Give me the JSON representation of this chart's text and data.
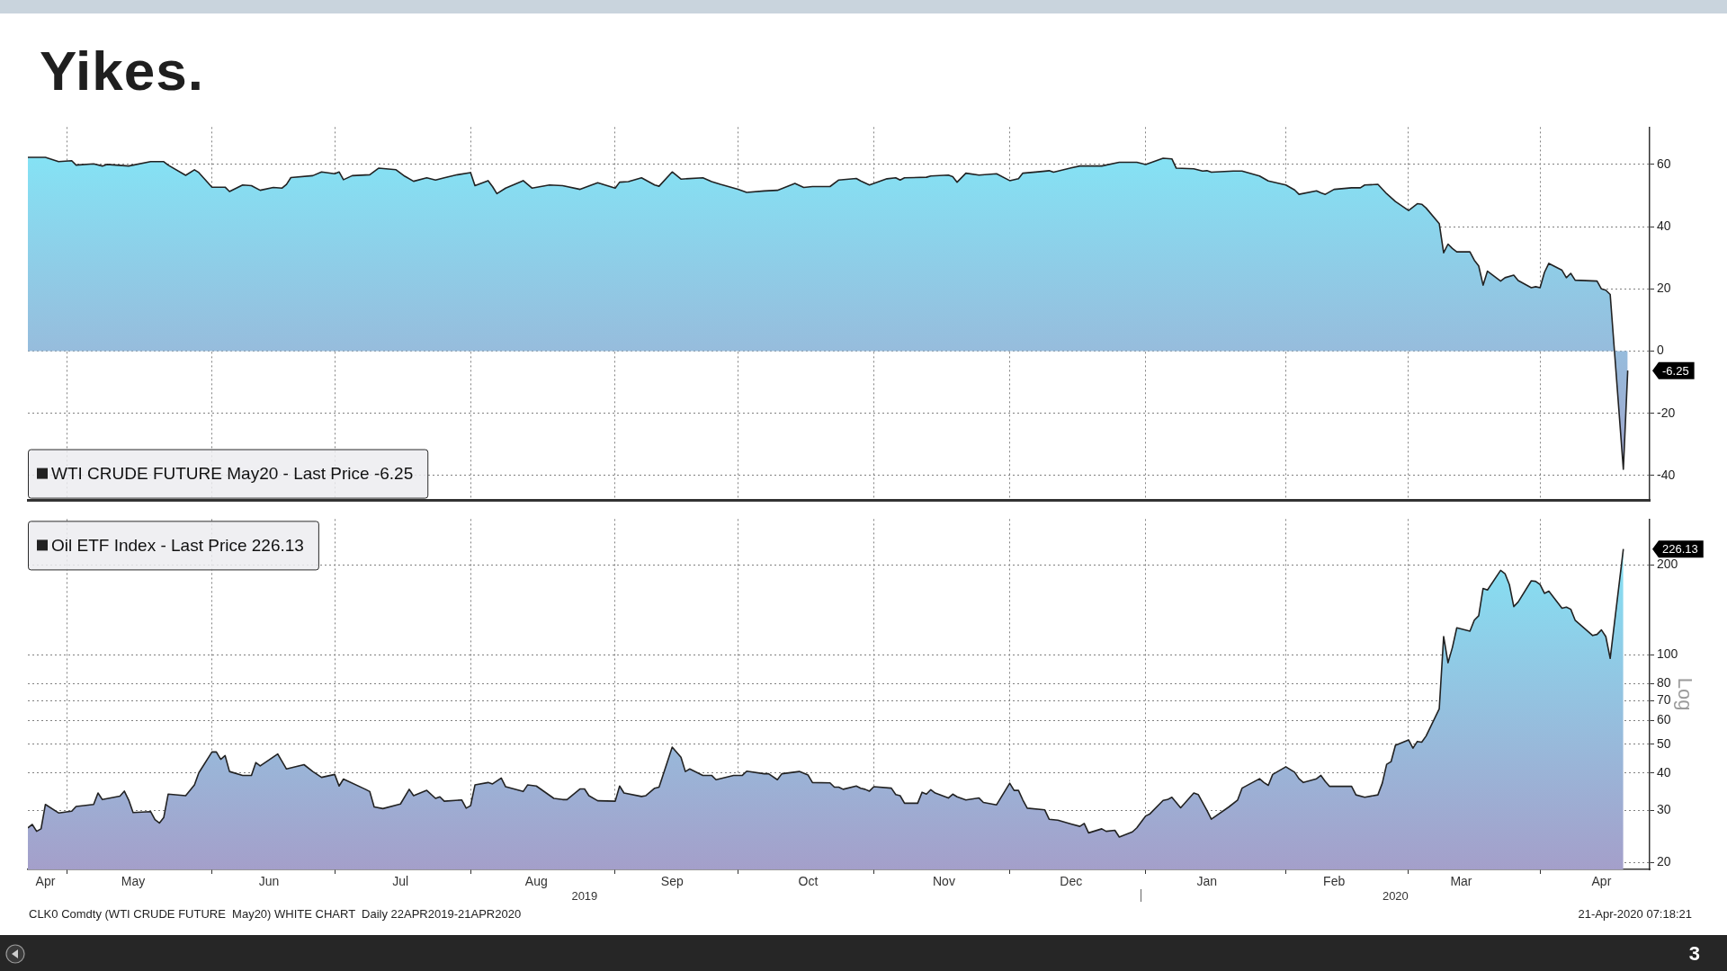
{
  "chart_data": [
    {
      "type": "area",
      "title": "Yikes.",
      "x": [
        "2019-04-22",
        "2019-04-26",
        "2019-04-29",
        "2019-05-02",
        "2019-05-03",
        "2019-05-07",
        "2019-05-09",
        "2019-05-10",
        "2019-05-15",
        "2019-05-20",
        "2019-05-23",
        "2019-05-24",
        "2019-05-28",
        "2019-05-30",
        "2019-05-31",
        "2019-06-03",
        "2019-06-06",
        "2019-06-07",
        "2019-06-10",
        "2019-06-12",
        "2019-06-14",
        "2019-06-17",
        "2019-06-19",
        "2019-06-20",
        "2019-06-21",
        "2019-06-26",
        "2019-06-28",
        "2019-07-01",
        "2019-07-02",
        "2019-07-03",
        "2019-07-05",
        "2019-07-09",
        "2019-07-11",
        "2019-07-15",
        "2019-07-17",
        "2019-07-19",
        "2019-07-22",
        "2019-07-24",
        "2019-07-26",
        "2019-07-29",
        "2019-08-01",
        "2019-08-02",
        "2019-08-05",
        "2019-08-06",
        "2019-08-07",
        "2019-08-09",
        "2019-08-13",
        "2019-08-15",
        "2019-08-19",
        "2019-08-22",
        "2019-08-26",
        "2019-08-30",
        "2019-09-03",
        "2019-09-04",
        "2019-09-06",
        "2019-09-09",
        "2019-09-12",
        "2019-09-13",
        "2019-09-16",
        "2019-09-18",
        "2019-09-23",
        "2019-09-25",
        "2019-09-27",
        "2019-10-01",
        "2019-10-03",
        "2019-10-07",
        "2019-10-10",
        "2019-10-14",
        "2019-10-16",
        "2019-10-18",
        "2019-10-22",
        "2019-10-24",
        "2019-10-28",
        "2019-10-29",
        "2019-10-31",
        "2019-11-04",
        "2019-11-06",
        "2019-11-07",
        "2019-11-08",
        "2019-11-13",
        "2019-11-14",
        "2019-11-18",
        "2019-11-19",
        "2019-11-20",
        "2019-11-22",
        "2019-11-25",
        "2019-11-29",
        "2019-12-02",
        "2019-12-04",
        "2019-12-05",
        "2019-12-09",
        "2019-12-11",
        "2019-12-12",
        "2019-12-16",
        "2019-12-18",
        "2019-12-23",
        "2019-12-27",
        "2019-12-31",
        "2020-01-02",
        "2020-01-06",
        "2020-01-08",
        "2020-01-09",
        "2020-01-13",
        "2020-01-15",
        "2020-01-16",
        "2020-01-17",
        "2020-01-22",
        "2020-01-24",
        "2020-01-28",
        "2020-01-30",
        "2020-02-03",
        "2020-02-05",
        "2020-02-06",
        "2020-02-10",
        "2020-02-11",
        "2020-02-12",
        "2020-02-14",
        "2020-02-18",
        "2020-02-20",
        "2020-02-21",
        "2020-02-24",
        "2020-02-26",
        "2020-02-28",
        "2020-03-02",
        "2020-03-04",
        "2020-03-05",
        "2020-03-06",
        "2020-03-09",
        "2020-03-10",
        "2020-03-11",
        "2020-03-12",
        "2020-03-13",
        "2020-03-16",
        "2020-03-17",
        "2020-03-18",
        "2020-03-19",
        "2020-03-20",
        "2020-03-23",
        "2020-03-24",
        "2020-03-26",
        "2020-03-27",
        "2020-03-30",
        "2020-03-31",
        "2020-04-01",
        "2020-04-02",
        "2020-04-03",
        "2020-04-06",
        "2020-04-07",
        "2020-04-08",
        "2020-04-09",
        "2020-04-14",
        "2020-04-15",
        "2020-04-16",
        "2020-04-17",
        "2020-04-20",
        "2020-04-21"
      ],
      "series": [
        {
          "name": "WTI CRUDE FUTURE May20 - Last Price -6.25",
          "color": "#222222",
          "values": [
            62.3,
            62.3,
            60.9,
            61.2,
            59.8,
            60.2,
            59.5,
            60.0,
            59.5,
            60.9,
            60.9,
            59.8,
            56.5,
            58.3,
            57.4,
            52.7,
            52.7,
            51.3,
            53.4,
            53.2,
            51.7,
            52.6,
            52.4,
            53.6,
            55.8,
            56.4,
            57.6,
            57.0,
            57.6,
            55.1,
            56.4,
            56.7,
            58.8,
            58.3,
            56.2,
            54.6,
            55.7,
            55.0,
            55.7,
            56.7,
            57.4,
            53.2,
            54.8,
            52.9,
            50.6,
            52.4,
            54.8,
            52.4,
            53.4,
            53.2,
            52.0,
            54.1,
            52.4,
            54.3,
            54.5,
            55.7,
            53.4,
            53.0,
            57.6,
            55.3,
            55.7,
            54.5,
            53.6,
            52.0,
            51.0,
            51.5,
            51.7,
            53.9,
            52.6,
            52.9,
            52.9,
            55.0,
            55.5,
            54.7,
            53.4,
            55.4,
            55.7,
            55.0,
            55.7,
            55.9,
            56.3,
            56.6,
            56.1,
            54.3,
            57.2,
            56.6,
            57.0,
            54.8,
            55.4,
            57.2,
            57.7,
            58.0,
            57.5,
            58.9,
            59.5,
            59.5,
            60.7,
            60.7,
            60.0,
            62.0,
            61.8,
            58.8,
            58.6,
            57.9,
            58.0,
            57.5,
            57.9,
            57.9,
            56.3,
            54.7,
            53.4,
            51.8,
            50.4,
            51.5,
            50.9,
            50.4,
            52.0,
            52.5,
            52.5,
            53.4,
            53.6,
            50.6,
            48.1,
            45.2,
            47.4,
            47.2,
            46.0,
            41.0,
            31.6,
            34.4,
            33.0,
            31.9,
            31.9,
            29.2,
            27.4,
            21.2,
            25.7,
            22.5,
            23.6,
            24.4,
            22.7,
            20.4,
            20.7,
            20.4,
            25.3,
            28.2,
            26.0,
            23.6,
            25.0,
            22.8,
            22.5,
            20.0,
            19.6,
            18.2,
            -38,
            -6.25
          ]
        }
      ],
      "xlim": [
        "2019-04-22",
        "2020-04-26"
      ],
      "xticks": [
        {
          "value": "2019-05-01",
          "label": null
        },
        {
          "value": "2019-06-03",
          "label": null
        },
        {
          "value": "2019-07-01",
          "label": null
        },
        {
          "value": "2019-08-01",
          "label": null
        },
        {
          "value": "2019-09-03",
          "label": null
        },
        {
          "value": "2019-10-01",
          "label": null
        },
        {
          "value": "2019-11-01",
          "label": null
        },
        {
          "value": "2019-12-02",
          "label": null
        },
        {
          "value": "2020-01-02",
          "label": null
        },
        {
          "value": "2020-02-03",
          "label": null
        },
        {
          "value": "2020-03-02",
          "label": null
        },
        {
          "value": "2020-04-01",
          "label": null
        }
      ],
      "ylim": [
        -48,
        72
      ],
      "yticks": [
        -40,
        -20,
        0,
        20,
        40,
        60
      ],
      "grid": true,
      "legend": "bottom left",
      "marker": "none",
      "tick_labels": "y",
      "annotations": [
        "-6.25"
      ]
    },
    {
      "type": "area",
      "ylabel": "Log",
      "log": "y",
      "x": [
        "2019-04-22",
        "2019-04-23",
        "2019-04-24",
        "2019-04-25",
        "2019-04-26",
        "2019-04-29",
        "2019-05-02",
        "2019-05-03",
        "2019-05-07",
        "2019-05-08",
        "2019-05-09",
        "2019-05-13",
        "2019-05-14",
        "2019-05-15",
        "2019-05-16",
        "2019-05-20",
        "2019-05-21",
        "2019-05-22",
        "2019-05-23",
        "2019-05-24",
        "2019-05-28",
        "2019-05-30",
        "2019-05-31",
        "2019-06-03",
        "2019-06-04",
        "2019-06-05",
        "2019-06-06",
        "2019-06-07",
        "2019-06-10",
        "2019-06-12",
        "2019-06-13",
        "2019-06-14",
        "2019-06-18",
        "2019-06-20",
        "2019-06-24",
        "2019-06-26",
        "2019-06-28",
        "2019-07-01",
        "2019-07-02",
        "2019-07-03",
        "2019-07-08",
        "2019-07-09",
        "2019-07-10",
        "2019-07-12",
        "2019-07-16",
        "2019-07-18",
        "2019-07-19",
        "2019-07-22",
        "2019-07-24",
        "2019-07-25",
        "2019-07-26",
        "2019-07-30",
        "2019-07-31",
        "2019-08-01",
        "2019-08-02",
        "2019-08-05",
        "2019-08-06",
        "2019-08-08",
        "2019-08-09",
        "2019-08-13",
        "2019-08-14",
        "2019-08-16",
        "2019-08-20",
        "2019-08-22",
        "2019-08-23",
        "2019-08-26",
        "2019-08-27",
        "2019-08-28",
        "2019-08-30",
        "2019-09-03",
        "2019-09-04",
        "2019-09-05",
        "2019-09-09",
        "2019-09-10",
        "2019-09-12",
        "2019-09-13",
        "2019-09-16",
        "2019-09-18",
        "2019-09-19",
        "2019-09-20",
        "2019-09-23",
        "2019-09-25",
        "2019-09-26",
        "2019-09-30",
        "2019-10-02",
        "2019-10-03",
        "2019-10-07",
        "2019-10-08",
        "2019-10-10",
        "2019-10-11",
        "2019-10-15",
        "2019-10-17",
        "2019-10-18",
        "2019-10-22",
        "2019-10-23",
        "2019-10-24",
        "2019-10-25",
        "2019-10-28",
        "2019-10-29",
        "2019-10-30",
        "2019-10-31",
        "2019-11-01",
        "2019-11-05",
        "2019-11-06",
        "2019-11-07",
        "2019-11-08",
        "2019-11-11",
        "2019-11-12",
        "2019-11-13",
        "2019-11-14",
        "2019-11-15",
        "2019-11-18",
        "2019-11-19",
        "2019-11-20",
        "2019-11-22",
        "2019-11-25",
        "2019-11-26",
        "2019-11-29",
        "2019-12-02",
        "2019-12-03",
        "2019-12-04",
        "2019-12-05",
        "2019-12-06",
        "2019-12-10",
        "2019-12-11",
        "2019-12-13",
        "2019-12-16",
        "2019-12-18",
        "2019-12-19",
        "2019-12-20",
        "2019-12-23",
        "2019-12-24",
        "2019-12-26",
        "2019-12-27",
        "2019-12-30",
        "2019-12-31",
        "2020-01-02",
        "2020-01-03",
        "2020-01-06",
        "2020-01-07",
        "2020-01-08",
        "2020-01-10",
        "2020-01-13",
        "2020-01-14",
        "2020-01-16",
        "2020-01-17",
        "2020-01-21",
        "2020-01-23",
        "2020-01-24",
        "2020-01-28",
        "2020-01-29",
        "2020-01-30",
        "2020-01-31",
        "2020-02-03",
        "2020-02-05",
        "2020-02-06",
        "2020-02-07",
        "2020-02-10",
        "2020-02-11",
        "2020-02-12",
        "2020-02-13",
        "2020-02-18",
        "2020-02-19",
        "2020-02-21",
        "2020-02-24",
        "2020-02-25",
        "2020-02-26",
        "2020-02-27",
        "2020-02-28",
        "2020-03-02",
        "2020-03-03",
        "2020-03-04",
        "2020-03-05",
        "2020-03-06",
        "2020-03-09",
        "2020-03-10",
        "2020-03-11",
        "2020-03-12",
        "2020-03-13",
        "2020-03-16",
        "2020-03-17",
        "2020-03-18",
        "2020-03-19",
        "2020-03-20",
        "2020-03-23",
        "2020-03-24",
        "2020-03-25",
        "2020-03-26",
        "2020-03-27",
        "2020-03-30",
        "2020-03-31",
        "2020-04-01",
        "2020-04-02",
        "2020-04-03",
        "2020-04-06",
        "2020-04-07",
        "2020-04-08",
        "2020-04-09",
        "2020-04-13",
        "2020-04-14",
        "2020-04-15",
        "2020-04-16",
        "2020-04-17",
        "2020-04-20"
      ],
      "series": [
        {
          "name": "Oil ETF Index - Last Price 226.13",
          "color": "#222222",
          "values": [
            26.2,
            26.9,
            25.5,
            26.0,
            31.4,
            29.4,
            29.8,
            30.9,
            31.4,
            34.3,
            32.6,
            33.5,
            34.8,
            32.5,
            29.5,
            29.7,
            27.9,
            27.2,
            28.4,
            34.0,
            33.6,
            36.5,
            40.1,
            47.1,
            47.1,
            44.5,
            45.8,
            40.5,
            39.3,
            39.3,
            43.4,
            42.3,
            46.4,
            41.3,
            42.7,
            40.5,
            38.7,
            39.6,
            36.2,
            38.2,
            35.3,
            34.7,
            30.8,
            30.4,
            31.5,
            35.3,
            33.6,
            35.0,
            32.9,
            33.3,
            32.2,
            32.5,
            30.5,
            31.1,
            36.5,
            37.2,
            36.8,
            38.5,
            36.0,
            34.7,
            36.5,
            36.2,
            32.9,
            32.6,
            32.6,
            35.4,
            35.4,
            33.6,
            32.3,
            32.2,
            36.2,
            34.3,
            33.4,
            33.6,
            35.6,
            35.9,
            48.9,
            45.2,
            40.5,
            41.3,
            39.3,
            39.3,
            38.0,
            39.3,
            39.3,
            40.6,
            39.8,
            39.8,
            38.0,
            39.8,
            40.5,
            39.4,
            37.2,
            37.1,
            35.9,
            35.9,
            35.3,
            36.2,
            35.6,
            35.3,
            34.8,
            36.0,
            35.6,
            33.9,
            33.6,
            31.7,
            31.7,
            34.5,
            34.0,
            35.2,
            34.3,
            33.0,
            34.0,
            33.3,
            32.5,
            33.0,
            31.9,
            31.3,
            37.0,
            35.0,
            35.0,
            32.5,
            30.5,
            30.1,
            28.0,
            27.8,
            27.0,
            26.5,
            27.1,
            25.2,
            26.0,
            25.5,
            25.7,
            24.4,
            25.4,
            26.2,
            28.7,
            29.2,
            32.4,
            32.6,
            33.2,
            30.6,
            34.3,
            33.9,
            30.0,
            28.0,
            30.8,
            32.5,
            35.6,
            38.3,
            37.2,
            36.4,
            39.6,
            42.0,
            40.3,
            38.3,
            37.2,
            38.3,
            39.3,
            37.5,
            36.1,
            36.1,
            33.8,
            33.2,
            33.8,
            37.0,
            42.8,
            43.7,
            49.6,
            51.7,
            48.5,
            51.1,
            50.8,
            53.3,
            65.8,
            115,
            93.9,
            105.7,
            123,
            119.9,
            130.5,
            135,
            166.8,
            164.7,
            191.8,
            187,
            171.8,
            145,
            150.1,
            176.9,
            176.2,
            171.8,
            160.6,
            163.3,
            143.2,
            144.4,
            142,
            130.5,
            115.9,
            116.9,
            121,
            115,
            97.1,
            226.13
          ]
        }
      ],
      "xlim": [
        "2019-04-22",
        "2020-04-26"
      ],
      "xticks": [
        {
          "value": "2019-04-26",
          "label": "Apr"
        },
        {
          "value": "2019-05-01",
          "label": null
        },
        {
          "value": "2019-05-16",
          "label": "May"
        },
        {
          "value": "2019-06-03",
          "label": null
        },
        {
          "value": "2019-06-16",
          "label": "Jun"
        },
        {
          "value": "2019-07-01",
          "label": null
        },
        {
          "value": "2019-07-16",
          "label": "Jul"
        },
        {
          "value": "2019-08-01",
          "label": null
        },
        {
          "value": "2019-08-16",
          "label": "Aug"
        },
        {
          "value": "2019-09-03",
          "label": null
        },
        {
          "value": "2019-09-16",
          "label": "Sep"
        },
        {
          "value": "2019-10-01",
          "label": null
        },
        {
          "value": "2019-10-17",
          "label": "Oct"
        },
        {
          "value": "2019-11-01",
          "label": null
        },
        {
          "value": "2019-11-17",
          "label": "Nov"
        },
        {
          "value": "2019-12-02",
          "label": null
        },
        {
          "value": "2019-12-16",
          "label": "Dec"
        },
        {
          "value": "2020-01-02",
          "label": null
        },
        {
          "value": "2020-01-16",
          "label": "Jan"
        },
        {
          "value": "2020-02-03",
          "label": null
        },
        {
          "value": "2020-02-14",
          "label": "Feb"
        },
        {
          "value": "2020-03-02",
          "label": null
        },
        {
          "value": "2020-03-14",
          "label": "Mar"
        },
        {
          "value": "2020-04-01",
          "label": null
        },
        {
          "value": "2020-04-15",
          "label": "Apr"
        }
      ],
      "x2lim": [
        "2019-04-22",
        "2020-04-26"
      ],
      "x2ticks": [
        {
          "value": "2019-08-27",
          "label": "2019"
        },
        {
          "value": "2020-01-01",
          "label": null
        },
        {
          "value": "2020-02-28",
          "label": "2020"
        }
      ],
      "ylim": [
        19,
        285
      ],
      "yticks": [
        20,
        30,
        40,
        50,
        60,
        70,
        80,
        100,
        200
      ],
      "grid": true,
      "legend": "top left",
      "marker": "none",
      "annotations": [
        "226.13",
        "CLK0 Comdty (WTI CRUDE FUTURE  May20) WHITE CHART  Daily 22APR2019-21APR2020",
        "21-Apr-2020 07:18:21",
        "3"
      ]
    }
  ]
}
